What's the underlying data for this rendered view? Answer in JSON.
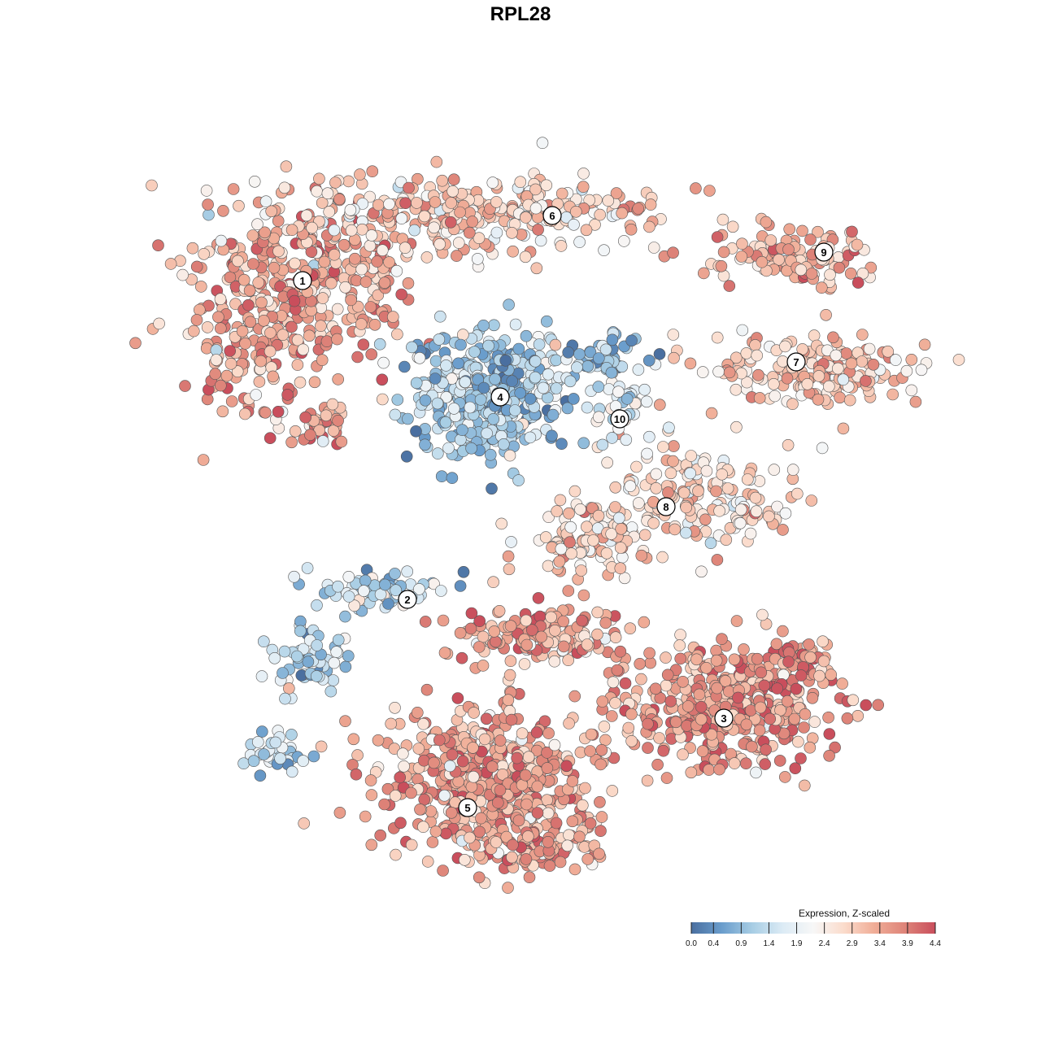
{
  "chart_data": {
    "type": "scatter",
    "title": "RPL28",
    "colorbar": {
      "title": "Expression, Z-scaled",
      "ticks": [
        "0.0",
        "0.4",
        "0.9",
        "1.4",
        "1.9",
        "2.4",
        "2.9",
        "3.4",
        "3.9",
        "4.4"
      ],
      "range": [
        0.0,
        4.4
      ],
      "palette": [
        "#4a6fa0",
        "#6a9dcc",
        "#a7cde4",
        "#dcebf5",
        "#f7f7f7",
        "#fbdccc",
        "#f0ad97",
        "#de8479",
        "#c94e5c"
      ]
    },
    "clusters": [
      {
        "label": "1",
        "mean": 3.4
      },
      {
        "label": "2",
        "mean": 1.3
      },
      {
        "label": "3",
        "mean": 3.6
      },
      {
        "label": "4",
        "mean": 1.1
      },
      {
        "label": "5",
        "mean": 3.4
      },
      {
        "label": "6",
        "mean": 2.9
      },
      {
        "label": "7",
        "mean": 3.0
      },
      {
        "label": "8",
        "mean": 2.8
      },
      {
        "label": "9",
        "mean": 3.1
      },
      {
        "label": "10",
        "mean": 1.9
      }
    ]
  }
}
